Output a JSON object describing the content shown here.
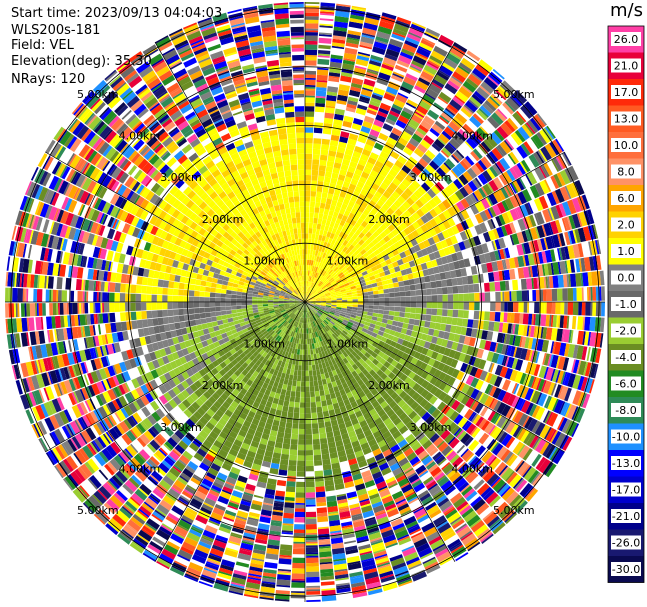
{
  "header": {
    "start_time": "Start time: 2023/09/13 04:04:03",
    "instrument": "WLS200s-181",
    "field": "Field: VEL",
    "elevation": "Elevation(deg): 35.30",
    "nrays": "NRays: 120"
  },
  "colorbar": {
    "unit": "m/s",
    "bins": [
      {
        "label": "26.0",
        "color": "#ff3fa6"
      },
      {
        "label": "21.0",
        "color": "#e8003a"
      },
      {
        "label": "17.0",
        "color": "#ff2a0a"
      },
      {
        "label": "13.0",
        "color": "#ff5a22"
      },
      {
        "label": "10.0",
        "color": "#ff6f3c"
      },
      {
        "label": "8.0",
        "color": "#ff9266"
      },
      {
        "label": "6.0",
        "color": "#ffa500"
      },
      {
        "label": "2.0",
        "color": "#ffd200"
      },
      {
        "label": "1.0",
        "color": "#ffff00"
      },
      {
        "label": "0.0",
        "color": "#808080"
      },
      {
        "label": "-1.0",
        "color": "#696969"
      },
      {
        "label": "-2.0",
        "color": "#9acd32"
      },
      {
        "label": "-4.0",
        "color": "#6b8e23"
      },
      {
        "label": "-6.0",
        "color": "#228b22"
      },
      {
        "label": "-8.0",
        "color": "#2e8b57"
      },
      {
        "label": "-10.0",
        "color": "#1e90ff"
      },
      {
        "label": "-13.0",
        "color": "#0000ff"
      },
      {
        "label": "-17.0",
        "color": "#0000cd"
      },
      {
        "label": "-21.0",
        "color": "#00008b"
      },
      {
        "label": "-26.0",
        "color": "#191970"
      },
      {
        "label": "-30.0",
        "color": "#0a0a50"
      }
    ]
  },
  "chart_data": {
    "type": "heatmap",
    "projection": "polar-ppi",
    "field": "VEL",
    "unit": "m/s",
    "nrays": 120,
    "elevation_deg": 35.3,
    "range_rings_km": [
      1.0,
      2.0,
      3.0,
      4.0,
      5.0
    ],
    "ring_labels": [
      "1.00km",
      "2.00km",
      "3.00km",
      "4.00km",
      "5.00km"
    ],
    "azimuth_spokes_deg": [
      0,
      30,
      60,
      90,
      120,
      150,
      180,
      210,
      240,
      270,
      300,
      330
    ],
    "max_range_km": 5.1,
    "gate_km": 0.03,
    "pattern": {
      "north_sector_velocity_ms": [
        1.0,
        2.0
      ],
      "south_sector_velocity_ms": [
        -4.0,
        -2.0
      ],
      "transition_velocity_ms": [
        -1.0,
        0.0
      ],
      "clean_signal_max_range_km": 2.8,
      "noise_beyond_km": 3.3
    }
  }
}
